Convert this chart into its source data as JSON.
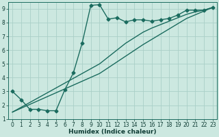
{
  "xlabel": "Humidex (Indice chaleur)",
  "bg_color": "#cce8e0",
  "grid_color": "#aacfc7",
  "line_color": "#1a6b5e",
  "xlim": [
    -0.5,
    23.5
  ],
  "ylim": [
    1,
    9.5
  ],
  "yticks": [
    1,
    2,
    3,
    4,
    5,
    6,
    7,
    8,
    9
  ],
  "xticks": [
    0,
    1,
    2,
    3,
    4,
    5,
    6,
    7,
    8,
    9,
    10,
    11,
    12,
    13,
    14,
    15,
    16,
    17,
    18,
    19,
    20,
    21,
    22,
    23
  ],
  "line1_x": [
    0,
    1,
    2,
    3,
    4,
    5,
    6,
    7,
    8,
    9,
    10,
    11,
    12,
    13,
    14,
    15,
    16,
    17,
    18,
    19,
    20,
    21,
    22,
    23
  ],
  "line1_y": [
    3.0,
    2.4,
    1.7,
    1.7,
    1.6,
    1.6,
    3.1,
    4.35,
    6.5,
    9.25,
    9.3,
    8.25,
    8.35,
    8.05,
    8.2,
    8.2,
    8.1,
    8.2,
    8.3,
    8.55,
    8.9,
    8.9,
    8.9,
    9.1
  ],
  "line2_x": [
    0,
    10,
    11,
    12,
    13,
    14,
    15,
    16,
    17,
    18,
    19,
    20,
    21,
    22,
    23
  ],
  "line2_y": [
    1.5,
    5.0,
    5.5,
    6.0,
    6.5,
    6.9,
    7.3,
    7.6,
    7.85,
    8.1,
    8.35,
    8.6,
    8.78,
    8.9,
    9.1
  ],
  "line3_x": [
    0,
    10,
    15,
    20,
    23
  ],
  "line3_y": [
    1.5,
    4.3,
    6.4,
    8.3,
    9.1
  ],
  "marker": "D",
  "markersize": 2.5,
  "linewidth": 1.0
}
